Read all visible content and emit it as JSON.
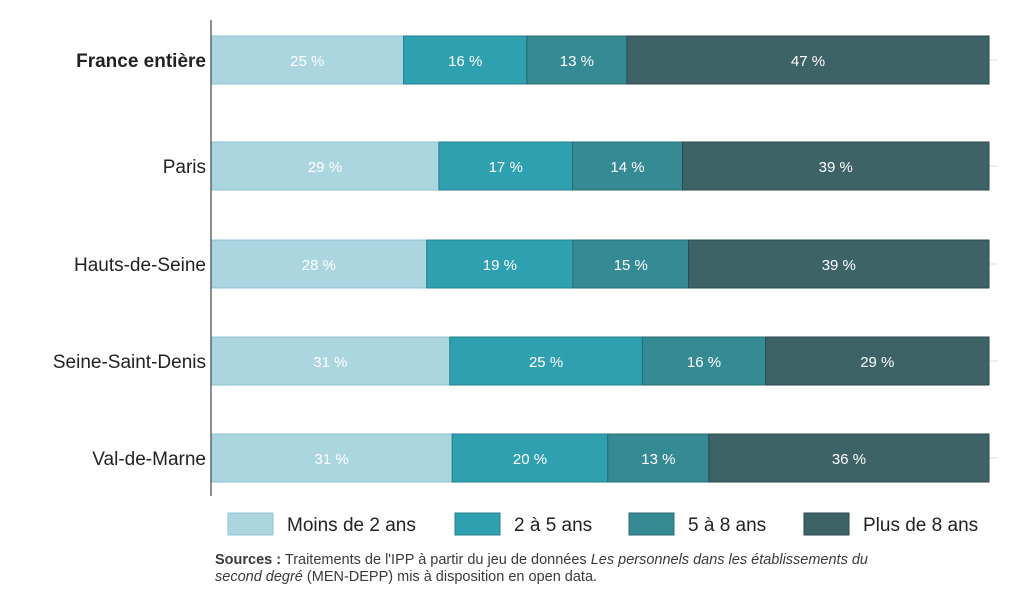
{
  "chart_data": {
    "type": "bar",
    "orientation": "horizontal",
    "stacked": true,
    "normalized": true,
    "categories": [
      "France entière",
      "Paris",
      "Hauts-de-Seine",
      "Seine-Saint-Denis",
      "Val-de-Marne"
    ],
    "category_bold": [
      true,
      false,
      false,
      false,
      false
    ],
    "series": [
      {
        "name": "Moins de 2 ans",
        "values": [
          25,
          29,
          28,
          31,
          31
        ],
        "labels": [
          "25 %",
          "29 %",
          "28 %",
          "31 %",
          "31 %"
        ],
        "color": "#acd6df",
        "stroke": "#8cc3cf"
      },
      {
        "name": "2 à 5 ans",
        "values": [
          16,
          17,
          19,
          25,
          20
        ],
        "labels": [
          "16 %",
          "17 %",
          "19 %",
          "25 %",
          "20 %"
        ],
        "color": "#2fa0b0",
        "stroke": "#23808d"
      },
      {
        "name": "5 à 8 ans",
        "values": [
          13,
          14,
          15,
          16,
          13
        ],
        "labels": [
          "13 %",
          "14 %",
          "15 %",
          "16 %",
          "13 %"
        ],
        "color": "#368a93",
        "stroke": "#266c74"
      },
      {
        "name": "Plus de 8 ans",
        "values": [
          47,
          39,
          39,
          29,
          36
        ],
        "labels": [
          "47 %",
          "39 %",
          "39 %",
          "29 %",
          "36 %"
        ],
        "color": "#3e6367",
        "stroke": "#2b4a4d"
      }
    ],
    "xlim": [
      0,
      100
    ],
    "legend_position": "bottom"
  },
  "source": {
    "label": "Sources :",
    "text_before": "Traitements de l'IPP à partir du jeu de données",
    "text_italic_1": "Les personnels dans les établissements du",
    "text_italic_2": "second degré",
    "text_after": "(MEN-DEPP) mis à disposition en open data."
  }
}
